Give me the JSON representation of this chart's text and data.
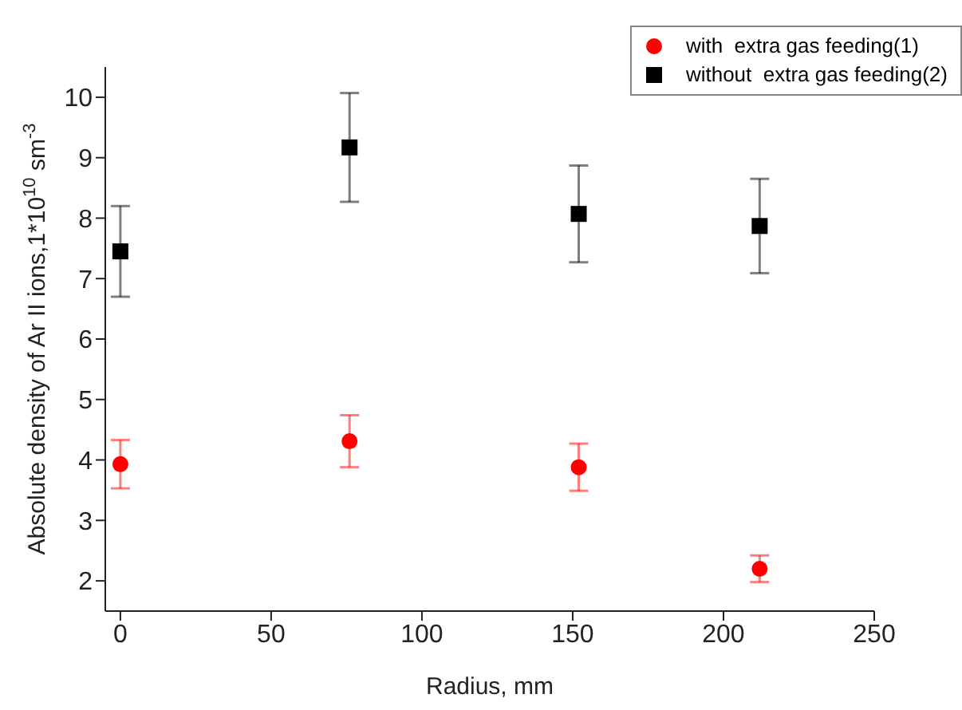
{
  "chart_data": {
    "type": "scatter",
    "xlabel": "Radius, mm",
    "ylabel": "Absolute density of Ar II ions,1*10$^{10}$ sm$^{-3}$",
    "x": [
      0,
      76,
      152,
      212
    ],
    "series": [
      {
        "name": "with  extra gas feeding(1)",
        "color": "#ff0000",
        "marker": "circle",
        "values": [
          3.93,
          4.31,
          3.88,
          2.2
        ],
        "errors": [
          0.4,
          0.43,
          0.39,
          0.22
        ]
      },
      {
        "name": "without  extra gas feeding(2)",
        "color": "#000000",
        "marker": "square",
        "values": [
          7.45,
          9.17,
          8.07,
          7.87
        ],
        "errors": [
          0.75,
          0.9,
          0.8,
          0.78
        ]
      }
    ],
    "xlim": [
      -5,
      250
    ],
    "xticks": [
      0,
      50,
      100,
      150,
      200,
      250
    ],
    "ylim": [
      1.5,
      10.5
    ],
    "yticks": [
      2,
      3,
      4,
      5,
      6,
      7,
      8,
      9,
      10
    ],
    "grid": false,
    "legend": "top right"
  }
}
